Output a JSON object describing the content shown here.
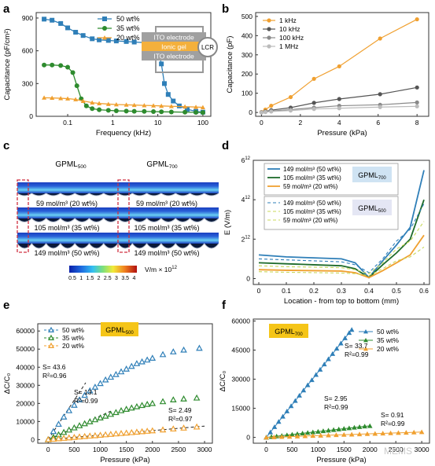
{
  "colors": {
    "blue": "#2f7fb8",
    "green": "#2e8b2e",
    "orange": "#f0a030",
    "darkgreen": "#1e6b2a",
    "yellowgreen": "#c8d85a",
    "gray_dark": "#555555",
    "gray_mid": "#8a8a8a",
    "gray_light": "#bbbbbb",
    "box_yellow": "#f5c518",
    "box_blue": "#cfe3f3",
    "box_lav": "#e4e6f4",
    "dash_red": "#d03040"
  },
  "panel_labels": [
    "a",
    "b",
    "c",
    "d",
    "e",
    "f"
  ],
  "panel_a_inset": {
    "top": "ITO electrode",
    "middle": "Ionic gel",
    "bottom": "ITO electrode",
    "meter": "LCR"
  },
  "panel_c": {
    "col_titles": [
      "GPML",
      "GPML"
    ],
    "col_subs": [
      "500",
      "700"
    ],
    "row_labels_left": [
      "59 mol/m³ (20 wt%)",
      "105 mol/m³ (35 wt%)",
      "149 mol/m³ (50 wt%)"
    ],
    "row_labels_right": [
      "59 mol/m³ (20 wt%)",
      "105 mol/m³ (35 wt%)",
      "149 mol/m³ (50 wt%)"
    ],
    "colorbar_ticks": [
      "0.5",
      "1",
      "1.5",
      "2",
      "2.5",
      "3",
      "3.5",
      "4"
    ],
    "colorbar_unit": "V/m × 10",
    "colorbar_exp": "12"
  },
  "chart_data": [
    {
      "panel": "a",
      "type": "scatter",
      "xscale": "log",
      "xlim": [
        0.02,
        150
      ],
      "ylim": [
        0,
        950
      ],
      "xlabel": "Frequency (kHz)",
      "ylabel": "Capacitance (pF/cm²)",
      "xticks": [
        0.1,
        1,
        10,
        100
      ],
      "xtick_labels": [
        "0.1",
        "1",
        "10",
        "100"
      ],
      "yticks": [
        0,
        300,
        600,
        900
      ],
      "legend_position": "top-left",
      "series": [
        {
          "name": "50 wt%",
          "marker": "square",
          "color": "blue",
          "x": [
            0.03,
            0.045,
            0.07,
            0.1,
            0.15,
            0.22,
            0.35,
            0.5,
            0.8,
            1.2,
            2,
            3,
            5,
            8,
            10,
            12,
            14,
            17,
            22,
            30,
            45,
            70,
            100
          ],
          "y": [
            890,
            880,
            850,
            810,
            770,
            740,
            710,
            700,
            695,
            690,
            685,
            680,
            675,
            670,
            640,
            480,
            300,
            200,
            140,
            95,
            65,
            45,
            38
          ]
        },
        {
          "name": "35 wt%",
          "marker": "circle",
          "color": "green",
          "x": [
            0.03,
            0.045,
            0.07,
            0.1,
            0.13,
            0.16,
            0.2,
            0.26,
            0.35,
            0.5,
            0.8,
            1.2,
            2,
            3,
            5,
            8,
            12,
            20,
            40,
            70,
            100
          ],
          "y": [
            470,
            470,
            465,
            450,
            400,
            280,
            160,
            95,
            70,
            60,
            55,
            50,
            48,
            46,
            45,
            43,
            41,
            40,
            38,
            36,
            35
          ]
        },
        {
          "name": "20 wt%",
          "marker": "triangle",
          "color": "orange",
          "x": [
            0.03,
            0.045,
            0.07,
            0.1,
            0.15,
            0.22,
            0.35,
            0.5,
            0.8,
            1.2,
            2,
            3,
            5,
            8,
            12,
            20,
            40,
            70,
            100
          ],
          "y": [
            170,
            168,
            165,
            162,
            155,
            140,
            125,
            118,
            112,
            108,
            105,
            103,
            100,
            98,
            95,
            92,
            88,
            85,
            82
          ]
        }
      ]
    },
    {
      "panel": "b",
      "type": "line",
      "xlim": [
        -0.3,
        8.6
      ],
      "ylim": [
        -20,
        520
      ],
      "xlabel": "Pressure (kPa)",
      "ylabel": "Capacitance (pF)",
      "xticks": [
        0,
        2,
        4,
        6,
        8
      ],
      "yticks": [
        0,
        100,
        200,
        300,
        400,
        500
      ],
      "legend_position": "top-left",
      "series": [
        {
          "name": "1 kHz",
          "color": "orange",
          "x": [
            0,
            0.2,
            0.5,
            1.5,
            2.7,
            4,
            6.1,
            8
          ],
          "y": [
            2,
            15,
            35,
            80,
            175,
            240,
            385,
            485
          ]
        },
        {
          "name": "10 kHz",
          "color": "gray_dark",
          "x": [
            0,
            0.2,
            0.5,
            1.5,
            2.7,
            4,
            6.1,
            8
          ],
          "y": [
            1,
            5,
            12,
            25,
            50,
            70,
            95,
            130
          ]
        },
        {
          "name": "100 kHz",
          "color": "gray_mid",
          "x": [
            0,
            0.2,
            0.5,
            1.5,
            2.7,
            4,
            6.1,
            8
          ],
          "y": [
            0,
            3,
            7,
            15,
            25,
            35,
            40,
            52
          ]
        },
        {
          "name": "1 MHz",
          "color": "gray_light",
          "x": [
            0,
            0.2,
            0.5,
            1.5,
            2.7,
            4,
            6.1,
            8
          ],
          "y": [
            0,
            2,
            5,
            10,
            18,
            22,
            28,
            32
          ]
        }
      ]
    },
    {
      "panel": "d",
      "type": "line",
      "xlim": [
        -0.02,
        0.62
      ],
      "ylim": [
        -300000000000.0,
        6000000000000.0
      ],
      "xlabel": "Location - from top to bottom (mm)",
      "ylabel": "E (V/m)",
      "xticks": [
        0,
        0.1,
        0.2,
        0.3,
        0.4,
        0.5,
        0.6
      ],
      "yticks": [
        0,
        2000000000000.0,
        4000000000000.0,
        6000000000000.0
      ],
      "ytick_labels": [
        "0",
        "2e12",
        "4e12",
        "6e12"
      ],
      "legend_position": "top-left",
      "legend_tags": [
        "GPML700",
        "GPML500"
      ],
      "series": [
        {
          "name": "149 mol/m³ (50 wt%)",
          "group": "GPML700",
          "color": "blue",
          "dash": false,
          "x": [
            0,
            0.1,
            0.2,
            0.3,
            0.35,
            0.4,
            0.45,
            0.5,
            0.55,
            0.6
          ],
          "y": [
            1200000000000.0,
            1100000000000.0,
            1050000000000.0,
            1000000000000.0,
            800000000000.0,
            50000000000.0,
            900000000000.0,
            1700000000000.0,
            2600000000000.0,
            5500000000000.0
          ]
        },
        {
          "name": "105 mol/m³ (35 wt%)",
          "group": "GPML700",
          "color": "darkgreen",
          "dash": false,
          "x": [
            0,
            0.1,
            0.2,
            0.3,
            0.35,
            0.4,
            0.45,
            0.5,
            0.55,
            0.6
          ],
          "y": [
            800000000000.0,
            750000000000.0,
            700000000000.0,
            650000000000.0,
            500000000000.0,
            50000000000.0,
            700000000000.0,
            1300000000000.0,
            2000000000000.0,
            4000000000000.0
          ]
        },
        {
          "name": "59 mol/m³ (20 wt%)",
          "group": "GPML700",
          "color": "orange",
          "dash": false,
          "x": [
            0,
            0.1,
            0.2,
            0.3,
            0.35,
            0.4,
            0.45,
            0.5,
            0.55,
            0.6
          ],
          "y": [
            450000000000.0,
            420000000000.0,
            400000000000.0,
            380000000000.0,
            300000000000.0,
            50000000000.0,
            400000000000.0,
            800000000000.0,
            1200000000000.0,
            2200000000000.0
          ]
        },
        {
          "name": "149 mol/m³ (50 wt%)",
          "group": "GPML500",
          "color": "blue",
          "dash": true,
          "x": [
            0,
            0.1,
            0.2,
            0.3,
            0.35,
            0.4,
            0.45,
            0.5,
            0.55,
            0.6
          ],
          "y": [
            1000000000000.0,
            950000000000.0,
            900000000000.0,
            850000000000.0,
            700000000000.0,
            300000000000.0,
            1000000000000.0,
            1900000000000.0,
            2500000000000.0,
            3800000000000.0
          ]
        },
        {
          "name": "105 mol/m³ (35 wt%)",
          "group": "GPML500",
          "color": "yellowgreen",
          "dash": true,
          "x": [
            0,
            0.1,
            0.2,
            0.3,
            0.35,
            0.4,
            0.45,
            0.5,
            0.55,
            0.6
          ],
          "y": [
            650000000000.0,
            600000000000.0,
            580000000000.0,
            550000000000.0,
            450000000000.0,
            250000000000.0,
            800000000000.0,
            1500000000000.0,
            1900000000000.0,
            2900000000000.0
          ]
        },
        {
          "name": "59 mol/m³ (20 wt%)",
          "group": "GPML500",
          "color": "yellowgreen",
          "dash": true,
          "x": [
            0,
            0.1,
            0.2,
            0.3,
            0.35,
            0.4,
            0.45,
            0.5,
            0.55,
            0.6
          ],
          "y": [
            350000000000.0,
            320000000000.0,
            300000000000.0,
            280000000000.0,
            250000000000.0,
            150000000000.0,
            500000000000.0,
            900000000000.0,
            1100000000000.0,
            1600000000000.0
          ]
        }
      ]
    },
    {
      "panel": "e",
      "type": "scatter",
      "xlim": [
        -200,
        3150
      ],
      "ylim": [
        -2000,
        64000
      ],
      "xlabel": "Pressure (kPa)",
      "ylabel": "ΔC/C₀",
      "xticks": [
        0,
        500,
        1000,
        1500,
        2000,
        2500,
        3000
      ],
      "yticks": [
        0,
        10000,
        20000,
        30000,
        40000,
        50000,
        60000
      ],
      "legend_position": "top-left",
      "tag": "GPML500",
      "series": [
        {
          "name": "50 wt%",
          "marker": "triangle-open",
          "color": "blue",
          "x": [
            0,
            100,
            200,
            300,
            400,
            500,
            600,
            700,
            800,
            900,
            1000,
            1100,
            1200,
            1300,
            1400,
            1500,
            1600,
            1700,
            1800,
            1900,
            2000,
            2200,
            2400,
            2600,
            2900
          ],
          "y": [
            0,
            4500,
            8500,
            12500,
            16000,
            19000,
            22000,
            24500,
            27000,
            29000,
            31000,
            33000,
            34500,
            36000,
            37500,
            39000,
            40500,
            42000,
            43000,
            44000,
            45000,
            47000,
            48500,
            49500,
            50500
          ]
        },
        {
          "name": "35 wt%",
          "marker": "triangle-open",
          "color": "green",
          "x": [
            0,
            100,
            200,
            300,
            400,
            500,
            600,
            700,
            800,
            900,
            1000,
            1100,
            1200,
            1300,
            1400,
            1500,
            1600,
            1700,
            1800,
            1900,
            2000,
            2200,
            2400,
            2600,
            2850
          ],
          "y": [
            0,
            1300,
            2700,
            4000,
            5300,
            6500,
            7700,
            8800,
            9900,
            11000,
            12000,
            13000,
            14000,
            15000,
            16000,
            16800,
            17500,
            18200,
            18900,
            19500,
            20000,
            21000,
            22000,
            22500,
            23000
          ]
        },
        {
          "name": "20 wt%",
          "marker": "triangle-open",
          "color": "orange",
          "x": [
            0,
            100,
            200,
            300,
            400,
            500,
            600,
            700,
            800,
            900,
            1000,
            1100,
            1200,
            1300,
            1400,
            1500,
            1600,
            1700,
            1800,
            1900,
            2000,
            2200,
            2400,
            2600,
            2850
          ],
          "y": [
            0,
            250,
            500,
            750,
            1000,
            1250,
            1500,
            1750,
            2000,
            2200,
            2450,
            2700,
            2950,
            3200,
            3400,
            3650,
            3900,
            4150,
            4400,
            4650,
            4900,
            5400,
            5900,
            6400,
            7000
          ]
        }
      ],
      "fits": [
        {
          "label": "S= 43.6",
          "r2": "R²=0.96",
          "x0": 0,
          "y0": 0,
          "x1": 720,
          "y1": 31400
        },
        {
          "label": "S= 13.1",
          "r2": "R²=0.99",
          "x0": 0,
          "y0": 0,
          "x1": 1200,
          "y1": 15700
        },
        {
          "label": "S= 2.49",
          "r2": "R²=0.97",
          "x0": 0,
          "y0": 0,
          "x1": 3000,
          "y1": 7470
        }
      ]
    },
    {
      "panel": "f",
      "type": "scatter",
      "xlim": [
        -250,
        3150
      ],
      "ylim": [
        -3000,
        61000
      ],
      "xlabel": "Pressure (kPa)",
      "ylabel": "ΔC/C₀",
      "xticks": [
        0,
        500,
        1000,
        1500,
        2000,
        2500,
        3000
      ],
      "yticks": [
        0,
        15000,
        30000,
        45000,
        60000
      ],
      "legend_position": "top-right",
      "tag": "GPML700",
      "series": [
        {
          "name": "50 wt%",
          "marker": "triangle",
          "color": "blue",
          "x": [
            0,
            80,
            160,
            240,
            320,
            400,
            480,
            560,
            640,
            720,
            800,
            880,
            960,
            1040,
            1120,
            1200,
            1280,
            1360,
            1440,
            1520,
            1600,
            1650
          ],
          "y": [
            0,
            2700,
            5400,
            8100,
            10800,
            13500,
            16200,
            18900,
            21600,
            24300,
            27000,
            29600,
            32300,
            35000,
            37700,
            40400,
            43100,
            45800,
            48500,
            51200,
            53900,
            55500
          ]
        },
        {
          "name": "35 wt%",
          "marker": "triangle",
          "color": "green",
          "x": [
            0,
            100,
            200,
            300,
            400,
            500,
            600,
            700,
            800,
            900,
            1000,
            1100,
            1200,
            1300,
            1400,
            1500,
            1600,
            1700,
            1800,
            1900,
            2000
          ],
          "y": [
            0,
            300,
            600,
            900,
            1200,
            1500,
            1800,
            2100,
            2400,
            2700,
            3000,
            3300,
            3600,
            3900,
            4200,
            4500,
            4800,
            5100,
            5400,
            5700,
            5900
          ]
        },
        {
          "name": "20 wt%",
          "marker": "triangle",
          "color": "orange",
          "x": [
            0,
            150,
            300,
            450,
            600,
            750,
            900,
            1050,
            1200,
            1350,
            1500,
            1650,
            1800,
            1950,
            2100,
            2250,
            2400,
            2550,
            2700,
            2850,
            3000
          ],
          "y": [
            0,
            140,
            280,
            420,
            560,
            700,
            840,
            980,
            1110,
            1250,
            1390,
            1520,
            1660,
            1800,
            1940,
            2080,
            2210,
            2350,
            2490,
            2620,
            2760
          ]
        }
      ],
      "annotations": [
        {
          "label": "S= 33.7",
          "r2": "R²=0.99"
        },
        {
          "label": "S= 2.95",
          "r2": "R²=0.99"
        },
        {
          "label": "S= 0.91",
          "r2": "R²=0.99"
        }
      ]
    }
  ],
  "watermark": "MEMS"
}
